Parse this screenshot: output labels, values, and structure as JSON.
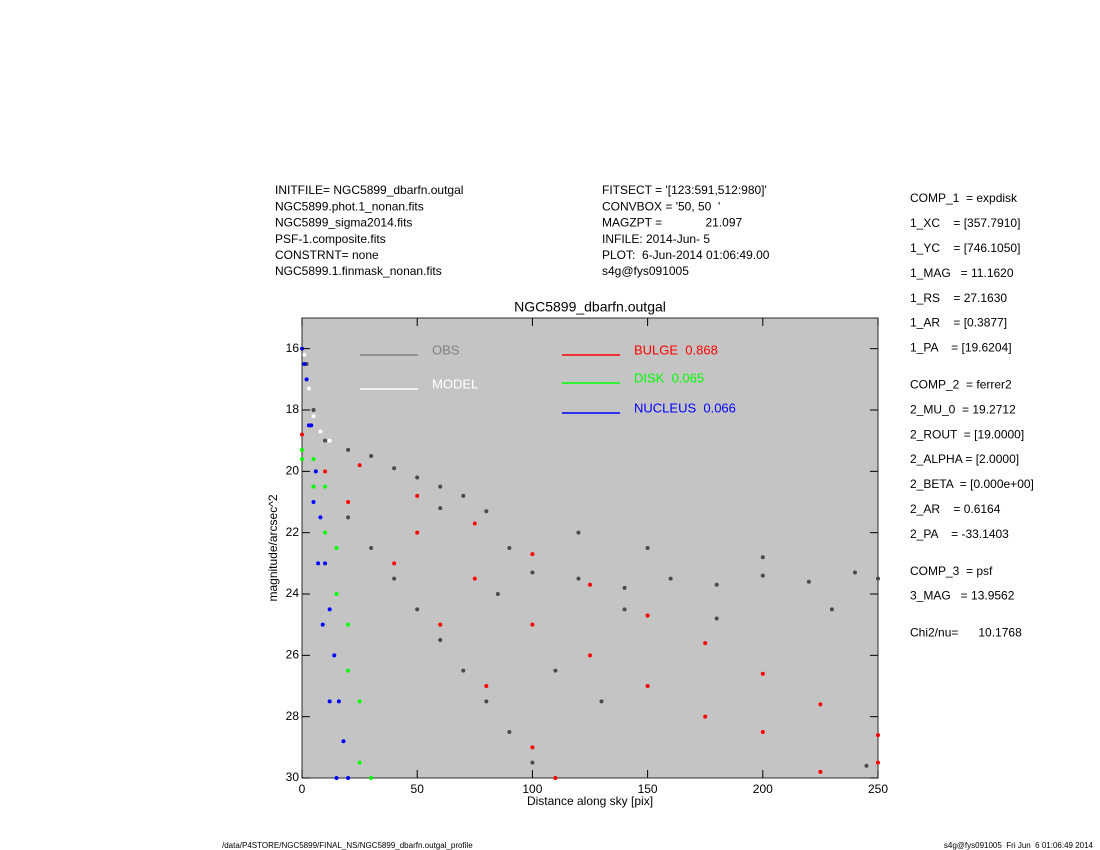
{
  "info_left": [
    "INITFILE= NGC5899_dbarfn.outgal",
    "NGC5899.phot.1_nonan.fits",
    "NGC5899_sigma2014.fits",
    "PSF-1.composite.fits",
    "CONSTRNT= none",
    "NGC5899.1.finmask_nonan.fits"
  ],
  "info_middle": [
    "FITSECT = '[123:591,512:980]'",
    "CONVBOX = '50, 50  '",
    "MAGZPT =             21.097",
    "INFILE: 2014-Jun- 5",
    "PLOT:  6-Jun-2014 01:06:49.00",
    "s4g@fys091005"
  ],
  "parameters": [
    [
      "COMP_1  = expdisk",
      "1_XC    = [357.7910]",
      "1_YC    = [746.1050]",
      "1_MAG   = 11.1620",
      "1_RS    = 27.1630",
      "1_AR    = [0.3877]",
      "1_PA    = [19.6204]"
    ],
    [
      "COMP_2  = ferrer2",
      "2_MU_0  = 19.2712",
      "2_ROUT  = [19.0000]",
      "2_ALPHA = [2.0000]",
      "2_BETA  = [0.000e+00]",
      "2_AR    = 0.6164",
      "2_PA    = -33.1403"
    ],
    [
      "COMP_3  = psf",
      "3_MAG   = 13.9562"
    ],
    [
      "Chi2/nu=      10.1768"
    ]
  ],
  "footer_left": "/data/P4STORE/NGC5899/FINAL_NS/NGC5899_dbarfn.outgal_profile",
  "footer_right": "s4g@fys091005  Fri Jun  6 01:06:49 2014",
  "chart_data": {
    "type": "scatter",
    "title": "NGC5899_dbarfn.outgal",
    "x_label": "Distance along sky [pix]",
    "y_label": "magnitude/arcsec^2",
    "xlim": [
      0,
      250
    ],
    "ylim": [
      30,
      15
    ],
    "xticks": [
      0,
      50,
      100,
      150,
      200,
      250
    ],
    "yticks": [
      16,
      18,
      20,
      22,
      24,
      26,
      28,
      30
    ],
    "background": "#c4c4c4",
    "series": [
      {
        "name": "OBS",
        "color": "#4a4a4a",
        "x": [
          2,
          5,
          10,
          20,
          30,
          40,
          50,
          60,
          70,
          80,
          90,
          100,
          120,
          140,
          160,
          180,
          200,
          220,
          240,
          250,
          20,
          30,
          40,
          50,
          60,
          70,
          80,
          90,
          100,
          150,
          200,
          230,
          180,
          120,
          140,
          60,
          85,
          110,
          130,
          245
        ],
        "values": [
          16.5,
          18,
          19,
          19.3,
          19.5,
          19.9,
          20.2,
          20.5,
          20.8,
          21.3,
          22.5,
          23.3,
          23.5,
          23.8,
          23.5,
          23.7,
          23.4,
          23.6,
          23.3,
          23.5,
          21.5,
          22.5,
          23.5,
          24.5,
          25.5,
          26.5,
          27.5,
          28.5,
          29.5,
          22.5,
          22.8,
          24.5,
          24.8,
          22,
          24.5,
          21.2,
          24,
          26.5,
          27.5,
          29.6
        ]
      },
      {
        "name": "MODEL",
        "color": "#ffffff",
        "x": [
          1,
          3,
          5,
          8,
          12
        ],
        "values": [
          16.2,
          17.3,
          18.2,
          18.7,
          19
        ]
      },
      {
        "name": "BULGE  0.868",
        "color": "#ff0000",
        "x": [
          0,
          25,
          50,
          75,
          100,
          125,
          150,
          175,
          200,
          225,
          250,
          10,
          20,
          40,
          60,
          80,
          100,
          110,
          50,
          100,
          150,
          200,
          250,
          75,
          125,
          175,
          225
        ],
        "values": [
          18.8,
          19.8,
          20.8,
          21.7,
          22.7,
          23.7,
          24.7,
          25.6,
          26.6,
          27.6,
          28.6,
          20,
          21,
          23,
          25,
          27,
          29,
          30,
          22,
          25,
          27,
          28.5,
          29.5,
          23.5,
          26,
          28,
          29.8
        ]
      },
      {
        "name": "DISK  0.065",
        "color": "#00ff00",
        "x": [
          0,
          5,
          10,
          15,
          20,
          25,
          30,
          0,
          5,
          10,
          15,
          20,
          25
        ],
        "values": [
          19.3,
          19.6,
          20.5,
          22.5,
          25,
          27.5,
          30,
          19.6,
          20.5,
          22,
          24,
          26.5,
          29.5
        ]
      },
      {
        "name": "NUCLEUS  0.066",
        "color": "#0000ff",
        "x": [
          0,
          2,
          4,
          6,
          8,
          10,
          12,
          14,
          16,
          18,
          20,
          1,
          3,
          5,
          7,
          9,
          12,
          15
        ],
        "values": [
          16,
          17,
          18.5,
          20,
          21.5,
          23,
          24.5,
          26,
          27.5,
          28.8,
          30,
          16.5,
          18.5,
          21,
          23,
          25,
          27.5,
          30
        ]
      }
    ]
  }
}
